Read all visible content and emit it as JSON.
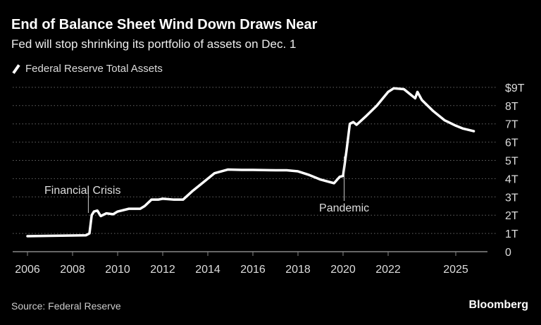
{
  "title": "End of Balance Sheet Wind Down Draws Near",
  "subtitle": "Fed will stop shrinking its portfolio of assets on Dec. 1",
  "source": "Source: Federal Reserve",
  "logo": "Bloomberg",
  "colors": {
    "background": "#000000",
    "line": "#ffffff",
    "grid": "#666666"
  },
  "chart_data": {
    "type": "line",
    "title": "End of Balance Sheet Wind Down Draws Near",
    "subtitle": "Fed will stop shrinking its portfolio of assets on Dec. 1",
    "legend_position": "top-left",
    "grid": "horizontal dotted",
    "xlim": [
      2005.8,
      2026.5
    ],
    "ylim": [
      0,
      9
    ],
    "x_ticks": [
      2006,
      2008,
      2010,
      2012,
      2014,
      2016,
      2018,
      2020,
      2022,
      2025
    ],
    "x_tick_labels": [
      "2006",
      "2008",
      "2010",
      "2012",
      "2014",
      "2016",
      "2018",
      "2020",
      "2022",
      "2025"
    ],
    "y_ticks": [
      0,
      1,
      2,
      3,
      4,
      5,
      6,
      7,
      8,
      9
    ],
    "y_tick_labels": [
      "0",
      "1T",
      "2T",
      "3T",
      "4T",
      "5T",
      "6T",
      "7T",
      "8T",
      "$9T"
    ],
    "series": [
      {
        "name": "Federal Reserve Total Assets",
        "x": [
          2006,
          2007,
          2008.6,
          2008.75,
          2008.85,
          2008.95,
          2009.1,
          2009.25,
          2009.5,
          2009.8,
          2010,
          2010.5,
          2011,
          2011.2,
          2011.5,
          2011.8,
          2012,
          2012.5,
          2012.9,
          2013.3,
          2013.8,
          2014.3,
          2014.9,
          2015.5,
          2016,
          2017,
          2017.5,
          2018,
          2018.5,
          2019,
          2019.6,
          2019.85,
          2020,
          2020.15,
          2020.3,
          2020.45,
          2020.6,
          2021,
          2021.5,
          2022,
          2022.25,
          2022.7,
          2023,
          2023.2,
          2023.3,
          2023.5,
          2024,
          2024.5,
          2025,
          2025.3,
          2025.8
        ],
        "values": [
          0.85,
          0.87,
          0.9,
          1.0,
          2.0,
          2.2,
          2.25,
          1.95,
          2.1,
          2.05,
          2.2,
          2.35,
          2.35,
          2.5,
          2.85,
          2.85,
          2.9,
          2.85,
          2.85,
          3.3,
          3.8,
          4.3,
          4.5,
          4.48,
          4.48,
          4.46,
          4.46,
          4.4,
          4.2,
          3.95,
          3.75,
          4.1,
          4.15,
          5.5,
          7.0,
          7.1,
          6.95,
          7.4,
          8.0,
          8.75,
          8.95,
          8.9,
          8.6,
          8.4,
          8.75,
          8.3,
          7.7,
          7.2,
          6.9,
          6.75,
          6.6
        ]
      }
    ],
    "annotations": [
      {
        "text": "Financial Crisis",
        "x": 2008.7
      },
      {
        "text": "Pandemic",
        "x": 2020.05
      }
    ]
  }
}
